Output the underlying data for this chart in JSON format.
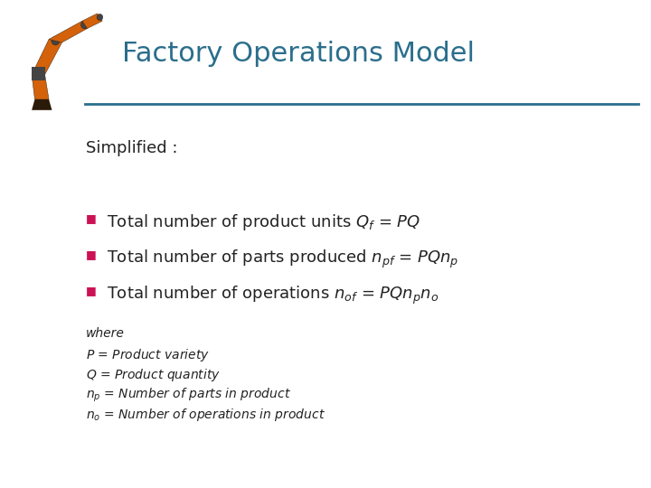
{
  "title": "Factory Operations Model",
  "title_color": "#2a6e8c",
  "title_fontsize": 22,
  "line_color": "#2a6e8c",
  "background_color": "#ffffff",
  "simplified_label": "Simplified :",
  "simplified_fontsize": 13,
  "simplified_color": "#222222",
  "bullet_color": "#cc1155",
  "bullet_char": "■",
  "bullets": [
    "Total number of product units $Q_f$ = $PQ$",
    "Total number of parts produced $n_{pf}$ = $PQn_p$",
    "Total number of operations $n_{of}$ = $PQn_pn_o$"
  ],
  "bullet_fontsize": 13,
  "bullet_color_text": "#222222",
  "where_lines": [
    "where",
    "$P$ = Product variety",
    "$Q$ = Product quantity",
    "$n_p$ = Number of parts in product",
    "$n_o$ = Number of operations in product"
  ],
  "where_fontsize": 10,
  "where_color": "#222222",
  "robot_orange": "#d4620a",
  "robot_dark": "#2a1a0a",
  "robot_gray": "#444444"
}
